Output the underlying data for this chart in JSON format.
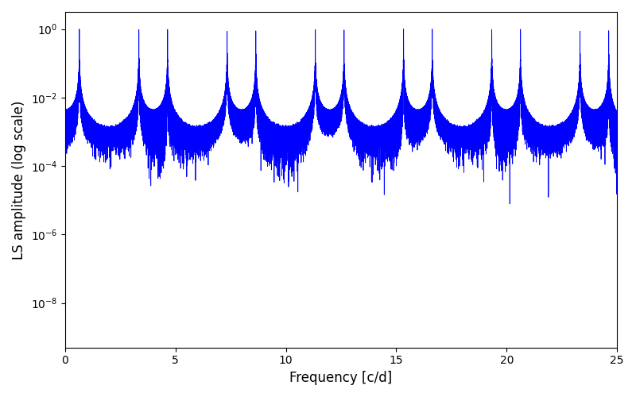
{
  "title": "",
  "xlabel": "Frequency [c/d]",
  "ylabel": "LS amplitude (log scale)",
  "line_color": "#0000ff",
  "line_width": 0.6,
  "xlim": [
    0,
    25
  ],
  "ylim": [
    5e-10,
    3.16
  ],
  "yscale": "log",
  "yticks": [
    1e-08,
    1e-06,
    0.0001,
    0.01,
    1.0
  ],
  "xticks": [
    0,
    5,
    10,
    15,
    20,
    25
  ],
  "background_color": "#ffffff",
  "figsize": [
    8.0,
    5.0
  ],
  "dpi": 100,
  "signal_freq": 0.65,
  "t_span": 200.0,
  "n_obs": 800,
  "noise_level": 0.002,
  "seed": 7,
  "n_freq": 8000
}
